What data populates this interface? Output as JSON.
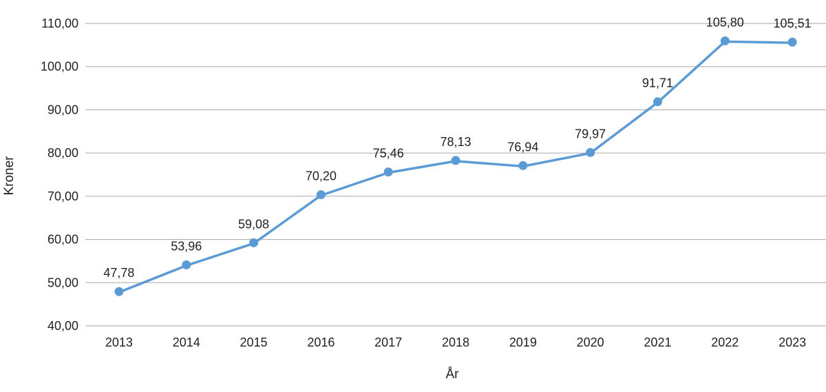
{
  "chart_data": {
    "type": "line",
    "title": "",
    "xlabel": "År",
    "ylabel": "Kroner",
    "categories": [
      "2013",
      "2014",
      "2015",
      "2016",
      "2017",
      "2018",
      "2019",
      "2020",
      "2021",
      "2022",
      "2023"
    ],
    "series": [
      {
        "values": [
          47.78,
          53.96,
          59.08,
          70.2,
          75.46,
          78.13,
          76.94,
          79.97,
          91.71,
          105.8,
          105.51
        ],
        "labels": [
          "47,78",
          "53,96",
          "59,08",
          "70,20",
          "75,46",
          "78,13",
          "76,94",
          "79,97",
          "91,71",
          "105,80",
          "105,51"
        ],
        "color": "#5b9bd5"
      }
    ],
    "ylim": [
      40,
      110
    ],
    "yticks": [
      40,
      50,
      60,
      70,
      80,
      90,
      100,
      110
    ],
    "ytick_labels": [
      "40,00",
      "50,00",
      "60,00",
      "70,00",
      "80,00",
      "90,00",
      "100,00",
      "110,00"
    ],
    "grid": true,
    "gridline_color": "#a6a6a6",
    "legend": "none"
  }
}
